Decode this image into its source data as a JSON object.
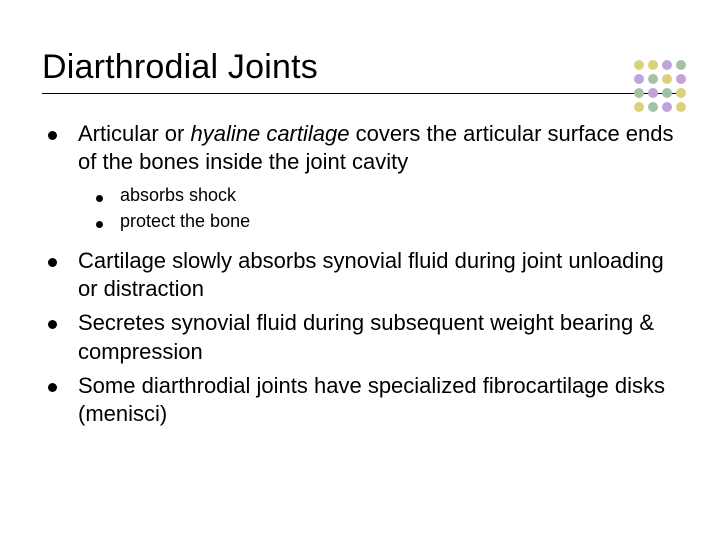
{
  "title": "Diarthrodial Joints",
  "bullets": {
    "b0_pre": "Articular or ",
    "b0_it": "hyaline cartilage",
    "b0_post": " covers the articular surface ends of the bones inside the joint cavity",
    "s0": "absorbs shock",
    "s1": "protect the bone",
    "b1": "Cartilage slowly absorbs synovial fluid during joint unloading or distraction",
    "b2": "Secretes synovial fluid during subsequent weight bearing & compression",
    "b3": "Some diarthrodial joints have specialized fibrocartilage disks (menisci)"
  },
  "decor": {
    "dot_colors": [
      "#d9d27a",
      "#d9d27a",
      "#bfa3d9",
      "#a3c2a3",
      "#bfa3d9",
      "#a3c2a3",
      "#d9d27a",
      "#bfa3d9",
      "#a3c2a3",
      "#bfa3d9",
      "#a3c2a3",
      "#d9d27a",
      "#d9d27a",
      "#a3c2a3",
      "#bfa3d9",
      "#d9d27a"
    ]
  },
  "style": {
    "title_fontsize": 34,
    "body_fontsize": 22,
    "sub_fontsize": 18,
    "text_color": "#000000",
    "background": "#ffffff",
    "rule_color": "#000000"
  }
}
